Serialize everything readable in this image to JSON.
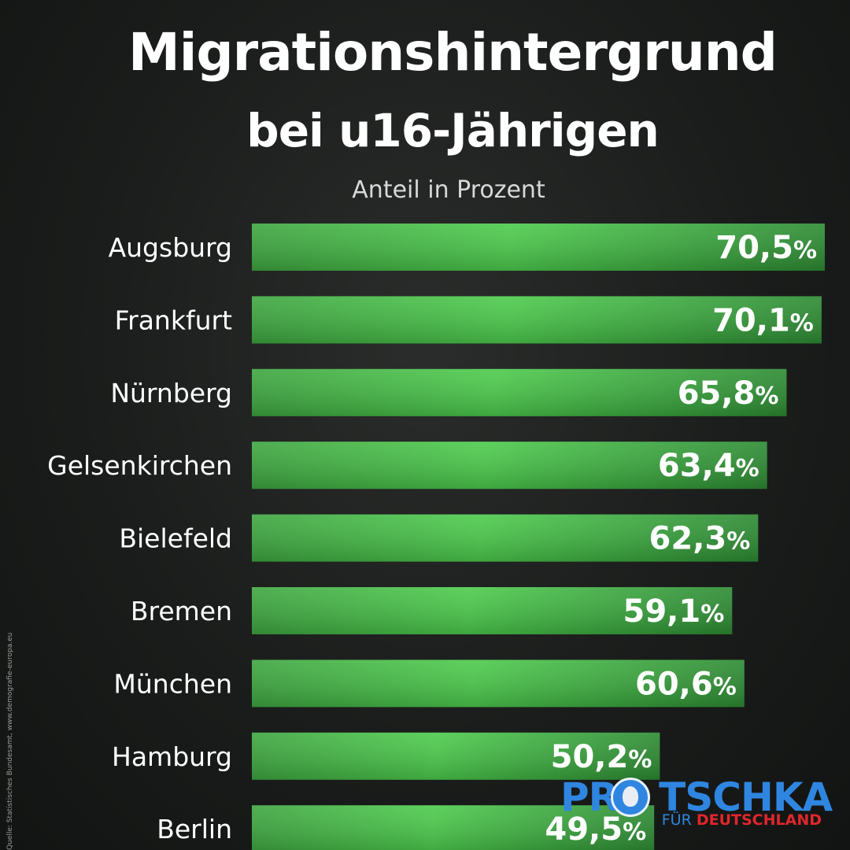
{
  "chart_data": {
    "type": "bar",
    "orientation": "horizontal",
    "title": "Migrationshintergrund bei u16-Jährigen",
    "subtitle": "Anteil in Prozent",
    "categories": [
      "Augsburg",
      "Frankfurt",
      "Nürnberg",
      "Gelsenkirchen",
      "Bielefeld",
      "Bremen",
      "München",
      "Hamburg",
      "Berlin"
    ],
    "values": [
      70.5,
      70.1,
      65.8,
      63.4,
      62.3,
      59.1,
      60.6,
      50.2,
      49.5
    ],
    "value_labels": [
      "70,5",
      "70,1",
      "65,8",
      "63,4",
      "62,3",
      "59,1",
      "60,6",
      "50,2",
      "49,5"
    ],
    "value_suffix": "%",
    "bar_color": "#3fb043",
    "grid": false,
    "legend": "none"
  },
  "header": {
    "title_line1": "Migrationshintergrund",
    "title_line2": "bei u16-Jährigen",
    "subtitle": "Anteil in Prozent"
  },
  "source": "Quelle: Statistisches Bundesamt, www.demografie-europa.eu",
  "logo": {
    "wordmark": "PROTSCHKA",
    "tagline_prefix": "FÜR",
    "tagline_main": "DEUTSCHLAND",
    "blue": "#2f86e0",
    "red": "#e1262c"
  }
}
